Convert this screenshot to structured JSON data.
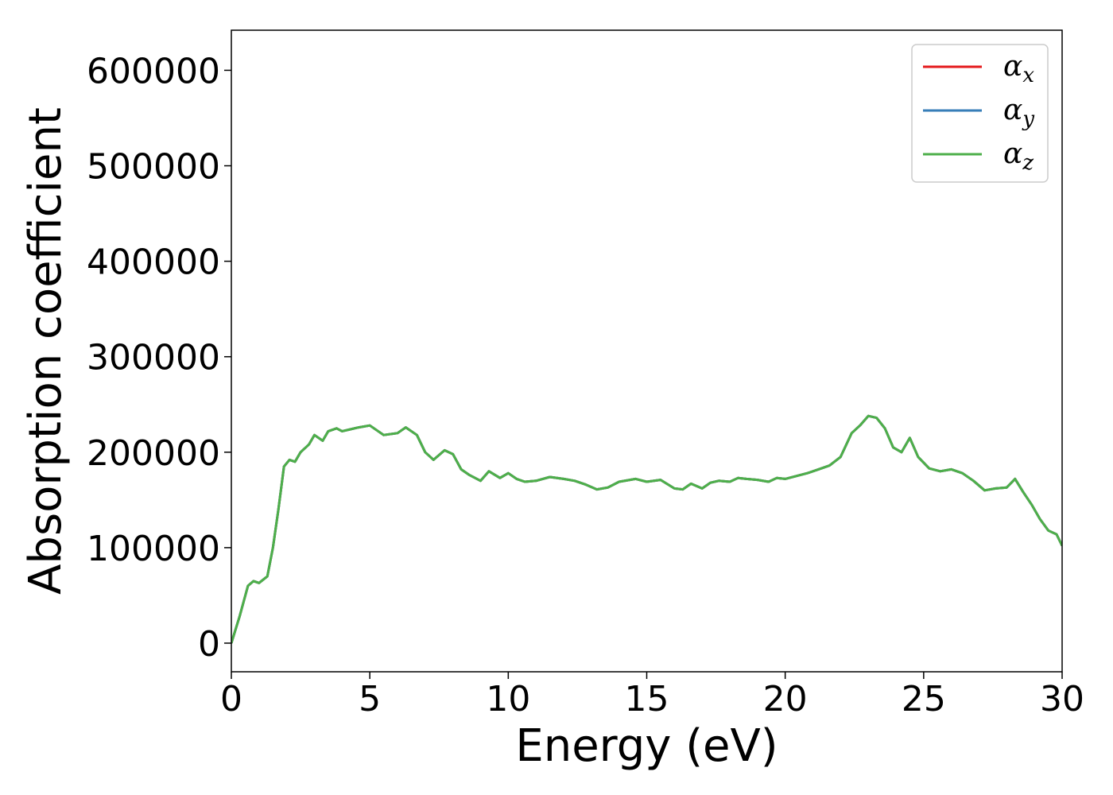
{
  "chart_data": {
    "type": "line",
    "title": "",
    "xlabel": "Energy (eV)",
    "ylabel": "Absorption coefficient",
    "xlim": [
      0,
      30
    ],
    "ylim": [
      -30000,
      642000
    ],
    "xticks": [
      0,
      5,
      10,
      15,
      20,
      25,
      30
    ],
    "yticks": [
      0,
      100000,
      200000,
      300000,
      400000,
      500000,
      600000
    ],
    "xtick_labels": [
      "0",
      "5",
      "10",
      "15",
      "20",
      "25",
      "30"
    ],
    "ytick_labels": [
      "0",
      "100000",
      "200000",
      "300000",
      "400000",
      "500000",
      "600000"
    ],
    "grid": false,
    "legend_position": "top-right",
    "x": [
      0,
      0.3,
      0.6,
      0.8,
      1.0,
      1.3,
      1.5,
      1.7,
      1.9,
      2.1,
      2.3,
      2.5,
      2.8,
      3.0,
      3.3,
      3.5,
      3.8,
      4.0,
      4.3,
      4.6,
      5.0,
      5.5,
      6.0,
      6.3,
      6.7,
      7.0,
      7.3,
      7.7,
      8.0,
      8.3,
      8.6,
      9.0,
      9.3,
      9.7,
      10.0,
      10.3,
      10.6,
      11.0,
      11.5,
      12.0,
      12.4,
      12.8,
      13.2,
      13.6,
      14.0,
      14.6,
      15.0,
      15.5,
      16.0,
      16.3,
      16.6,
      17.0,
      17.3,
      17.6,
      18.0,
      18.3,
      18.6,
      19.0,
      19.4,
      19.7,
      20.0,
      20.4,
      20.8,
      21.2,
      21.6,
      22.0,
      22.4,
      22.7,
      23.0,
      23.3,
      23.6,
      23.9,
      24.2,
      24.5,
      24.8,
      25.2,
      25.6,
      26.0,
      26.4,
      26.8,
      27.2,
      27.6,
      28.0,
      28.3,
      28.6,
      28.9,
      29.2,
      29.5,
      29.8,
      30.0
    ],
    "series": [
      {
        "name": "x",
        "color": "#e41a1c",
        "values": [
          0,
          28000,
          60000,
          65000,
          63000,
          70000,
          100000,
          140000,
          185000,
          192000,
          190000,
          200000,
          208000,
          218000,
          212000,
          222000,
          225000,
          222000,
          224000,
          226000,
          228000,
          218000,
          220000,
          226000,
          218000,
          200000,
          192000,
          202000,
          198000,
          182000,
          176000,
          170000,
          180000,
          173000,
          178000,
          172000,
          169000,
          170000,
          174000,
          172000,
          170000,
          166000,
          161000,
          163000,
          169000,
          172000,
          169000,
          171000,
          162000,
          161000,
          167000,
          162000,
          168000,
          170000,
          169000,
          173000,
          172000,
          171000,
          169000,
          173000,
          172000,
          175000,
          178000,
          182000,
          186000,
          195000,
          220000,
          228000,
          238000,
          236000,
          225000,
          205000,
          200000,
          215000,
          195000,
          183000,
          180000,
          182000,
          178000,
          170000,
          160000,
          162000,
          163000,
          172000,
          158000,
          145000,
          130000,
          118000,
          114000,
          102000
        ]
      },
      {
        "name": "y",
        "color": "#377eb8",
        "values": [
          0,
          28000,
          60000,
          65000,
          63000,
          70000,
          100000,
          140000,
          185000,
          192000,
          190000,
          200000,
          208000,
          218000,
          212000,
          222000,
          225000,
          222000,
          224000,
          226000,
          228000,
          218000,
          220000,
          226000,
          218000,
          200000,
          192000,
          202000,
          198000,
          182000,
          176000,
          170000,
          180000,
          173000,
          178000,
          172000,
          169000,
          170000,
          174000,
          172000,
          170000,
          166000,
          161000,
          163000,
          169000,
          172000,
          169000,
          171000,
          162000,
          161000,
          167000,
          162000,
          168000,
          170000,
          169000,
          173000,
          172000,
          171000,
          169000,
          173000,
          172000,
          175000,
          178000,
          182000,
          186000,
          195000,
          220000,
          228000,
          238000,
          236000,
          225000,
          205000,
          200000,
          215000,
          195000,
          183000,
          180000,
          182000,
          178000,
          170000,
          160000,
          162000,
          163000,
          172000,
          158000,
          145000,
          130000,
          118000,
          114000,
          102000
        ]
      },
      {
        "name": "z",
        "color": "#4daf4a",
        "values": [
          0,
          28000,
          60000,
          65000,
          63000,
          70000,
          100000,
          140000,
          185000,
          192000,
          190000,
          200000,
          208000,
          218000,
          212000,
          222000,
          225000,
          222000,
          224000,
          226000,
          228000,
          218000,
          220000,
          226000,
          218000,
          200000,
          192000,
          202000,
          198000,
          182000,
          176000,
          170000,
          180000,
          173000,
          178000,
          172000,
          169000,
          170000,
          174000,
          172000,
          170000,
          166000,
          161000,
          163000,
          169000,
          172000,
          169000,
          171000,
          162000,
          161000,
          167000,
          162000,
          168000,
          170000,
          169000,
          173000,
          172000,
          171000,
          169000,
          173000,
          172000,
          175000,
          178000,
          182000,
          186000,
          195000,
          220000,
          228000,
          238000,
          236000,
          225000,
          205000,
          200000,
          215000,
          195000,
          183000,
          180000,
          182000,
          178000,
          170000,
          160000,
          162000,
          163000,
          172000,
          158000,
          145000,
          130000,
          118000,
          114000,
          102000
        ]
      }
    ],
    "legend": [
      {
        "symbol": "α",
        "sub": "x",
        "color": "#e41a1c"
      },
      {
        "symbol": "α",
        "sub": "y",
        "color": "#377eb8"
      },
      {
        "symbol": "α",
        "sub": "z",
        "color": "#4daf4a"
      }
    ]
  }
}
